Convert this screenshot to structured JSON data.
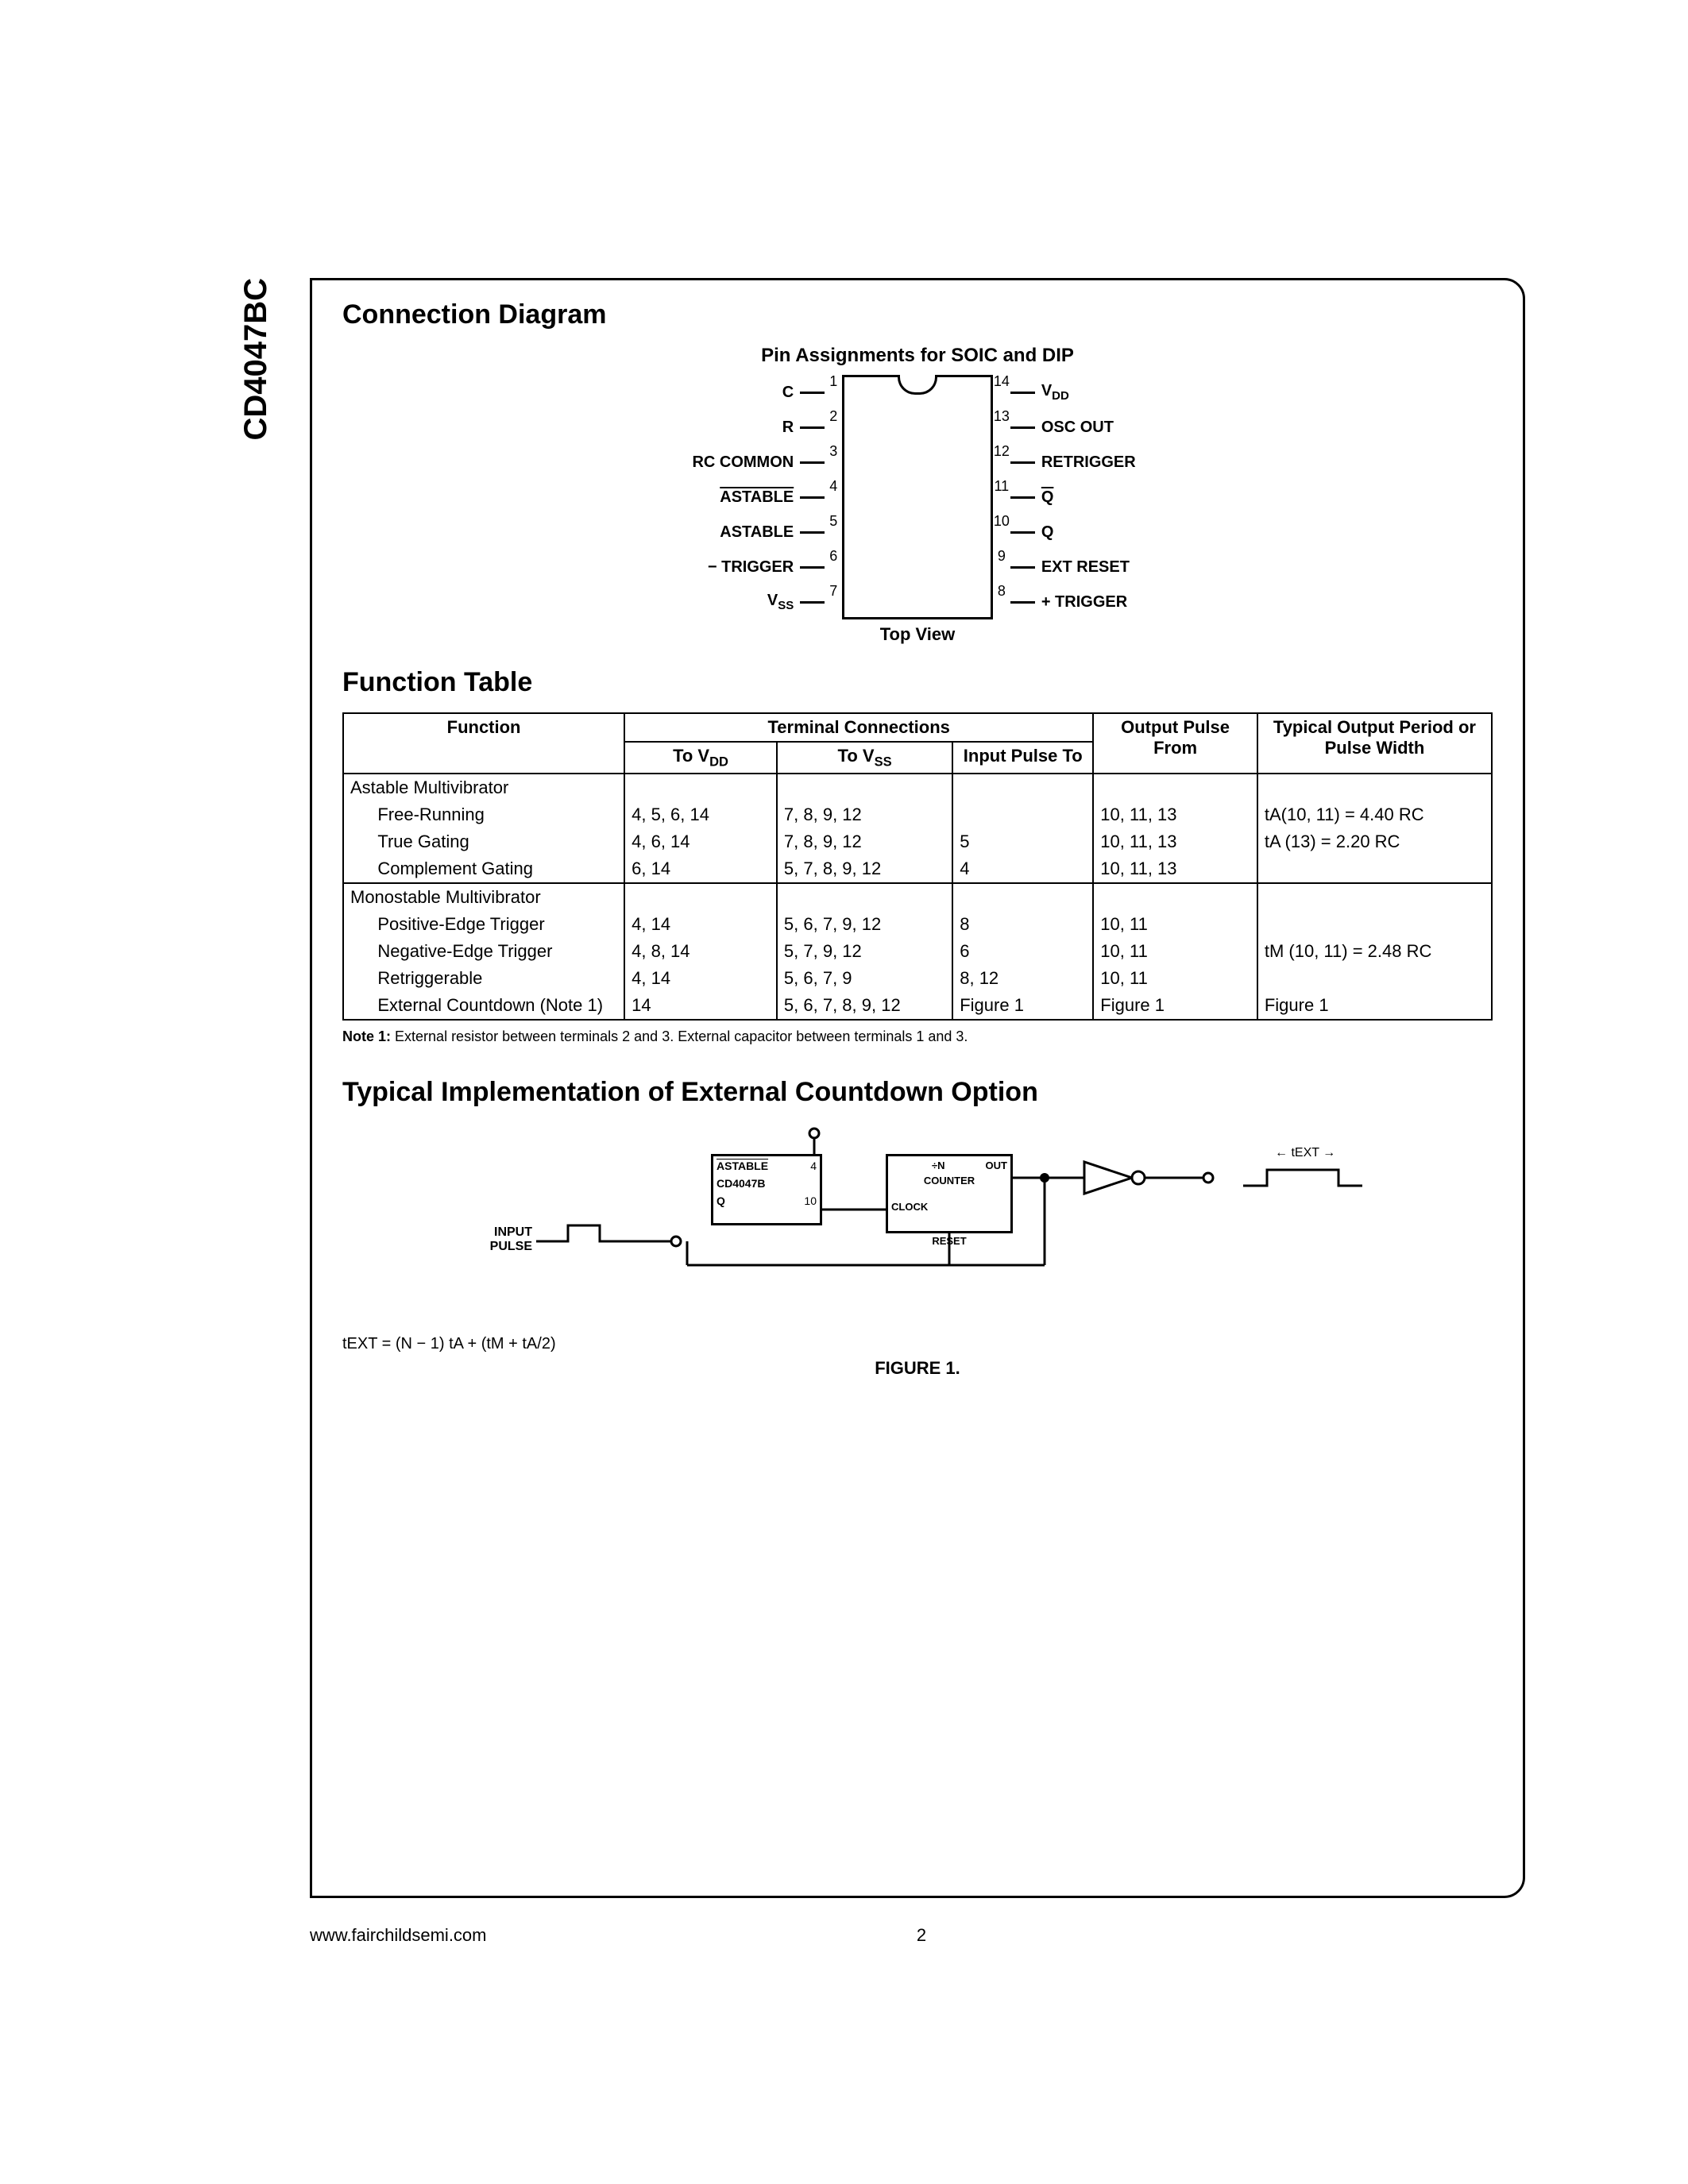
{
  "part_number": "CD4047BC",
  "sections": {
    "connection": "Connection Diagram",
    "function_table": "Function Table",
    "typical_impl": "Typical Implementation of External Countdown Option"
  },
  "pin_caption": "Pin Assignments for SOIC and DIP",
  "top_view": "Top View",
  "pins": {
    "left": [
      {
        "num": "1",
        "label": "C"
      },
      {
        "num": "2",
        "label": "R"
      },
      {
        "num": "3",
        "label": "RC COMMON"
      },
      {
        "num": "4",
        "label": "ASTABLE",
        "overline": true
      },
      {
        "num": "5",
        "label": "ASTABLE"
      },
      {
        "num": "6",
        "label": "− TRIGGER"
      },
      {
        "num": "7",
        "label": "V",
        "sub": "SS"
      }
    ],
    "right": [
      {
        "num": "14",
        "label": "V",
        "sub": "DD"
      },
      {
        "num": "13",
        "label": "OSC OUT"
      },
      {
        "num": "12",
        "label": "RETRIGGER"
      },
      {
        "num": "11",
        "label": "Q",
        "overline": true
      },
      {
        "num": "10",
        "label": "Q"
      },
      {
        "num": "9",
        "label": "EXT RESET"
      },
      {
        "num": "8",
        "label": "+ TRIGGER"
      }
    ]
  },
  "table": {
    "header_group": "Terminal Connections",
    "headers": {
      "function": "Function",
      "to_vdd": "To V",
      "to_vdd_sub": "DD",
      "to_vss": "To V",
      "to_vss_sub": "SS",
      "input_pulse": "Input Pulse To",
      "output_pulse": "Output Pulse From",
      "typical": "Typical Output Period or Pulse Width"
    },
    "sections": [
      {
        "title": "Astable Multivibrator",
        "rows": [
          {
            "fn": "Free-Running",
            "vdd": "4, 5, 6, 14",
            "vss": "7, 8, 9, 12",
            "in": "",
            "out": "10, 11, 13",
            "typ": "tA(10, 11) = 4.40 RC"
          },
          {
            "fn": "True Gating",
            "vdd": "4, 6, 14",
            "vss": "7, 8, 9, 12",
            "in": "5",
            "out": "10, 11, 13",
            "typ": "tA (13) = 2.20 RC"
          },
          {
            "fn": "Complement Gating",
            "vdd": "6, 14",
            "vss": "5, 7, 8, 9, 12",
            "in": "4",
            "out": "10, 11, 13",
            "typ": ""
          }
        ]
      },
      {
        "title": "Monostable Multivibrator",
        "rows": [
          {
            "fn": "Positive-Edge Trigger",
            "vdd": "4, 14",
            "vss": "5, 6, 7, 9, 12",
            "in": "8",
            "out": "10, 11",
            "typ": ""
          },
          {
            "fn": "Negative-Edge Trigger",
            "vdd": "4, 8, 14",
            "vss": "5, 7, 9, 12",
            "in": "6",
            "out": "10, 11",
            "typ": "tM (10, 11) = 2.48 RC"
          },
          {
            "fn": "Retriggerable",
            "vdd": "4, 14",
            "vss": "5, 6, 7, 9",
            "in": "8, 12",
            "out": "10, 11",
            "typ": ""
          },
          {
            "fn": "External Countdown (Note 1)",
            "vdd": "14",
            "vss": "5, 6, 7, 8, 9, 12",
            "in": "Figure 1",
            "out": "Figure 1",
            "typ": "Figure 1"
          }
        ]
      }
    ]
  },
  "note": "Note 1: External resistor between terminals 2 and 3. External capacitor between terminals 1 and 3.",
  "figure1": {
    "input_pulse": "INPUT PULSE",
    "box1_line1": "ASTABLE",
    "box1_line2": "CD4047B",
    "box1_line3": "Q",
    "box1_pin4": "4",
    "box1_pin10": "10",
    "counter_top": "÷N",
    "counter_mid": "COUNTER",
    "clock": "CLOCK",
    "out": "OUT",
    "reset": "RESET",
    "text_right": "tEXT",
    "caption": "FIGURE 1.",
    "formula": "tEXT = (N − 1) tA + (tM + tA/2)"
  },
  "footer": {
    "url": "www.fairchildsemi.com",
    "page": "2"
  }
}
